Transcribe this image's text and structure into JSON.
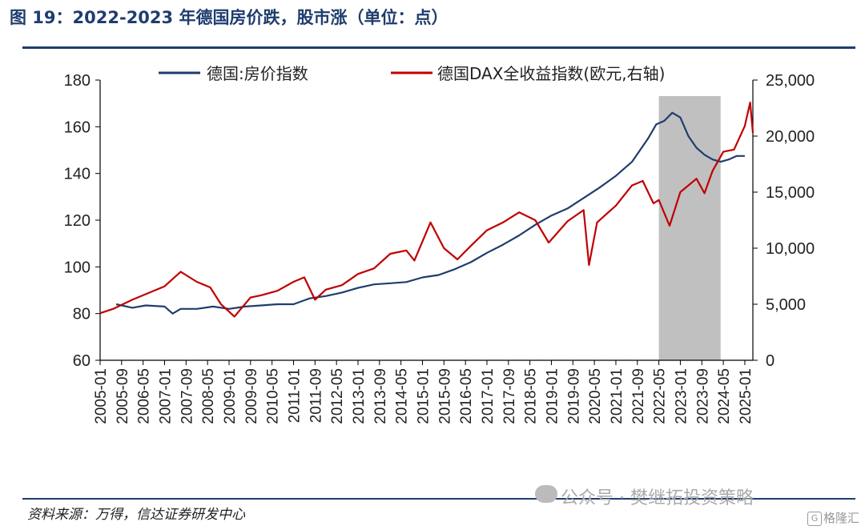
{
  "header": {
    "title": "图 19：2022-2023 年德国房价跌，股市涨（单位：点）"
  },
  "footer": {
    "source": "资料来源：万得，信达证券研发中心",
    "watermark": "公众号 · 樊继拓投资策略",
    "brand_mark": "G",
    "brand": "格隆汇"
  },
  "colors": {
    "house_series": "#1f3d6e",
    "dax_series": "#c00000",
    "shade": "#c0c0c0",
    "accent": "#1f3d6e"
  },
  "chart_data": {
    "type": "line",
    "title": "",
    "xlabel": "",
    "ylabel": "",
    "x_ticks": [
      "2005-01",
      "2005-09",
      "2006-05",
      "2007-01",
      "2007-09",
      "2008-05",
      "2009-01",
      "2009-09",
      "2010-05",
      "2011-01",
      "2011-09",
      "2012-05",
      "2013-01",
      "2013-09",
      "2014-05",
      "2015-01",
      "2015-09",
      "2016-05",
      "2017-01",
      "2017-09",
      "2018-05",
      "2019-01",
      "2019-09",
      "2020-05",
      "2021-01",
      "2021-09",
      "2022-05",
      "2023-01",
      "2023-09",
      "2024-05",
      "2025-01"
    ],
    "x_range": [
      "2005-01",
      "2025-04"
    ],
    "y_left": {
      "min": 60,
      "max": 180,
      "ticks": [
        60,
        80,
        100,
        120,
        140,
        160,
        180
      ]
    },
    "y_right": {
      "min": 0,
      "max": 25000,
      "ticks": [
        0,
        5000,
        10000,
        15000,
        20000,
        25000
      ],
      "tick_labels": [
        "0",
        "5,000",
        "10,000",
        "15,000",
        "20,000",
        "25,000"
      ]
    },
    "shaded_period": [
      "2022-05",
      "2024-04"
    ],
    "grid": false,
    "legend_position": "top",
    "series": [
      {
        "name": "德国:房价指数",
        "axis": "left",
        "color": "#1f3d6e",
        "points": [
          [
            "2005-07",
            84.0
          ],
          [
            "2006-01",
            82.5
          ],
          [
            "2006-06",
            83.5
          ],
          [
            "2007-01",
            83.0
          ],
          [
            "2007-04",
            80.0
          ],
          [
            "2007-07",
            82.0
          ],
          [
            "2008-01",
            82.0
          ],
          [
            "2008-07",
            83.0
          ],
          [
            "2009-01",
            82.0
          ],
          [
            "2009-07",
            83.0
          ],
          [
            "2010-01",
            83.5
          ],
          [
            "2010-07",
            84.0
          ],
          [
            "2011-01",
            84.0
          ],
          [
            "2011-07",
            86.5
          ],
          [
            "2012-01",
            87.5
          ],
          [
            "2012-07",
            89.0
          ],
          [
            "2013-01",
            91.0
          ],
          [
            "2013-07",
            92.5
          ],
          [
            "2014-01",
            93.0
          ],
          [
            "2014-07",
            93.5
          ],
          [
            "2015-01",
            95.5
          ],
          [
            "2015-07",
            96.5
          ],
          [
            "2016-01",
            99.0
          ],
          [
            "2016-07",
            102.0
          ],
          [
            "2017-01",
            106.0
          ],
          [
            "2017-07",
            109.5
          ],
          [
            "2018-01",
            113.5
          ],
          [
            "2018-07",
            118.0
          ],
          [
            "2019-01",
            122.0
          ],
          [
            "2019-07",
            125.0
          ],
          [
            "2020-01",
            129.5
          ],
          [
            "2020-07",
            134.0
          ],
          [
            "2021-01",
            139.0
          ],
          [
            "2021-07",
            145.0
          ],
          [
            "2022-01",
            155.0
          ],
          [
            "2022-04",
            161.0
          ],
          [
            "2022-07",
            162.5
          ],
          [
            "2022-10",
            166.0
          ],
          [
            "2023-01",
            164.0
          ],
          [
            "2023-04",
            156.0
          ],
          [
            "2023-07",
            151.0
          ],
          [
            "2023-10",
            148.0
          ],
          [
            "2024-01",
            146.0
          ],
          [
            "2024-04",
            145.0
          ],
          [
            "2024-07",
            146.0
          ],
          [
            "2024-10",
            147.5
          ],
          [
            "2025-01",
            147.5
          ]
        ]
      },
      {
        "name": "德国DAX全收益指数(欧元,右轴)",
        "axis": "right",
        "color": "#c00000",
        "points": [
          [
            "2005-01",
            4200
          ],
          [
            "2005-06",
            4600
          ],
          [
            "2006-01",
            5400
          ],
          [
            "2006-06",
            5900
          ],
          [
            "2007-01",
            6600
          ],
          [
            "2007-07",
            7900
          ],
          [
            "2008-01",
            7000
          ],
          [
            "2008-06",
            6500
          ],
          [
            "2008-10",
            5000
          ],
          [
            "2009-03",
            3900
          ],
          [
            "2009-09",
            5600
          ],
          [
            "2010-01",
            5800
          ],
          [
            "2010-07",
            6200
          ],
          [
            "2011-01",
            7000
          ],
          [
            "2011-05",
            7400
          ],
          [
            "2011-09",
            5400
          ],
          [
            "2012-01",
            6300
          ],
          [
            "2012-07",
            6700
          ],
          [
            "2013-01",
            7700
          ],
          [
            "2013-07",
            8200
          ],
          [
            "2014-01",
            9500
          ],
          [
            "2014-07",
            9800
          ],
          [
            "2014-10",
            8900
          ],
          [
            "2015-04",
            12300
          ],
          [
            "2015-09",
            10000
          ],
          [
            "2016-02",
            9000
          ],
          [
            "2016-07",
            10200
          ],
          [
            "2017-01",
            11600
          ],
          [
            "2017-07",
            12300
          ],
          [
            "2018-01",
            13200
          ],
          [
            "2018-07",
            12500
          ],
          [
            "2018-12",
            10500
          ],
          [
            "2019-07",
            12400
          ],
          [
            "2020-01",
            13400
          ],
          [
            "2020-03",
            8500
          ],
          [
            "2020-06",
            12300
          ],
          [
            "2021-01",
            13800
          ],
          [
            "2021-07",
            15600
          ],
          [
            "2021-11",
            16000
          ],
          [
            "2022-03",
            14000
          ],
          [
            "2022-05",
            14300
          ],
          [
            "2022-09",
            12000
          ],
          [
            "2023-01",
            15000
          ],
          [
            "2023-07",
            16200
          ],
          [
            "2023-10",
            14900
          ],
          [
            "2024-01",
            16900
          ],
          [
            "2024-05",
            18600
          ],
          [
            "2024-09",
            18800
          ],
          [
            "2025-01",
            20900
          ],
          [
            "2025-03",
            23000
          ],
          [
            "2025-04",
            20300
          ]
        ]
      }
    ]
  }
}
